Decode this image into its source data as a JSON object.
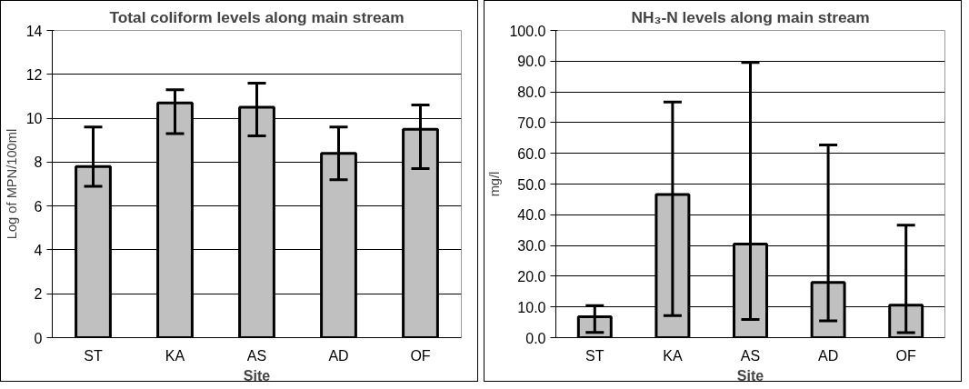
{
  "chart_data": [
    {
      "type": "bar",
      "title": "Total coliform levels along main stream",
      "xlabel": "Site",
      "ylabel": "Log of MPN/100ml",
      "categories": [
        "ST",
        "KA",
        "AS",
        "AD",
        "OF"
      ],
      "values": [
        7.8,
        10.7,
        10.5,
        8.4,
        9.5
      ],
      "color": "#c0c0c0",
      "errors": [
        [
          6.9,
          9.6
        ],
        [
          9.3,
          11.3
        ],
        [
          9.2,
          11.6
        ],
        [
          7.2,
          9.6
        ],
        [
          7.7,
          10.6
        ]
      ],
      "ylim": [
        0,
        14
      ],
      "yticks": [
        0,
        2,
        4,
        6,
        8,
        10,
        12,
        14
      ],
      "grid": "y"
    },
    {
      "type": "bar",
      "title": "NH₃-N levels along main stream",
      "xlabel": "Site",
      "ylabel": "mg/l",
      "categories": [
        "ST",
        "KA",
        "AS",
        "AD",
        "OF"
      ],
      "values": [
        6.8,
        46.6,
        30.5,
        18.0,
        10.6
      ],
      "color": "#c0c0c0",
      "errors": [
        [
          1.7,
          10.4
        ],
        [
          7.2,
          76.7
        ],
        [
          5.9,
          89.6
        ],
        [
          5.5,
          62.7
        ],
        [
          1.6,
          36.6
        ]
      ],
      "ylim": [
        0,
        100
      ],
      "yticks": [
        {
          "value": 0,
          "label": "0.0"
        },
        {
          "value": 10,
          "label": "10.0"
        },
        {
          "value": 20,
          "label": "20.0"
        },
        {
          "value": 30,
          "label": "30.0"
        },
        {
          "value": 40,
          "label": "40.0"
        },
        {
          "value": 50,
          "label": "50.0"
        },
        {
          "value": 60,
          "label": "60.0"
        },
        {
          "value": 70,
          "label": "70.0"
        },
        {
          "value": 80,
          "label": "80.0"
        },
        {
          "value": 90,
          "label": "90.0"
        },
        {
          "value": 100,
          "label": "100.0"
        }
      ],
      "grid": "y"
    }
  ]
}
